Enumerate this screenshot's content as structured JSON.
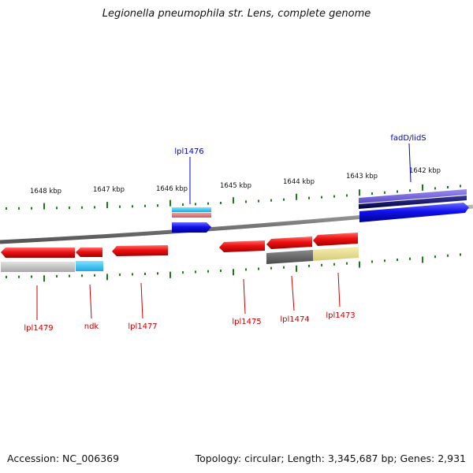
{
  "title": "Legionella pneumophila str. Lens, complete genome",
  "footer": {
    "accession": "Accession: NC_006369",
    "summary": "Topology: circular; Length: 3,345,687 bp; Genes: 2,931"
  },
  "scale_labels": [
    "1648 kbp",
    "1647 kbp",
    "1646 kbp",
    "1645 kbp",
    "1644 kbp",
    "1643 kbp",
    "1642 kbp"
  ],
  "genes_forward": [
    {
      "label": "lpl1476",
      "color": "#0000cc"
    },
    {
      "label": "fadD/lidS",
      "color": "#0000cc"
    }
  ],
  "genes_reverse": [
    {
      "label": "lpl1479",
      "color": "#cc0000"
    },
    {
      "label": "ndk",
      "color": "#cc0000"
    },
    {
      "label": "lpl1477",
      "color": "#cc0000"
    },
    {
      "label": "lpl1475",
      "color": "#cc0000"
    },
    {
      "label": "lpl1474",
      "color": "#cc0000"
    },
    {
      "label": "lpl1473",
      "color": "#cc0000"
    }
  ],
  "colors": {
    "backbone": "#808080",
    "tick": "#1a7a1a",
    "cds_reverse": "#ee1111",
    "cds_forward": "#1111ee",
    "label_forward": "#0000cc",
    "label_reverse": "#cc0000"
  }
}
